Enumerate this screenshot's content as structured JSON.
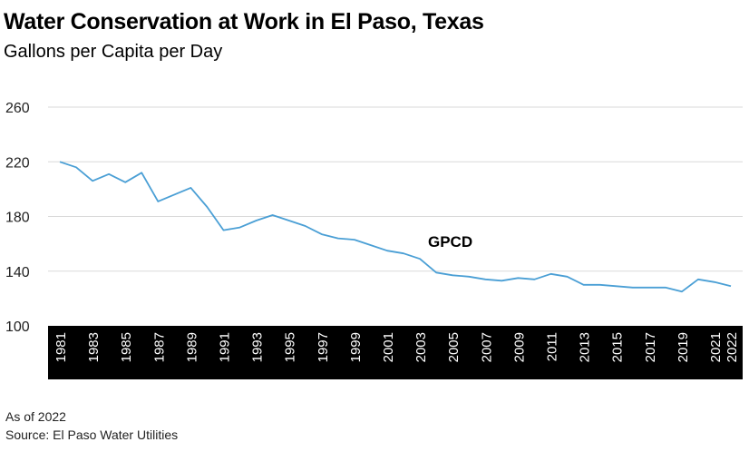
{
  "chart_data": {
    "type": "line",
    "title": "Water Conservation at Work in El Paso, Texas",
    "subtitle": "Gallons per Capita per Day",
    "x": [
      1981,
      1982,
      1983,
      1984,
      1985,
      1986,
      1987,
      1988,
      1989,
      1990,
      1991,
      1992,
      1993,
      1994,
      1995,
      1996,
      1997,
      1998,
      1999,
      2000,
      2001,
      2002,
      2003,
      2004,
      2005,
      2006,
      2007,
      2008,
      2009,
      2010,
      2011,
      2012,
      2013,
      2014,
      2015,
      2016,
      2017,
      2018,
      2019,
      2020,
      2021,
      2022
    ],
    "x_tick_labels": [
      "1981",
      "1983",
      "1985",
      "1987",
      "1989",
      "1991",
      "1993",
      "1995",
      "1997",
      "1999",
      "2001",
      "2003",
      "2005",
      "2007",
      "2009",
      "2011",
      "2013",
      "2015",
      "2017",
      "2019",
      "2021",
      "2022"
    ],
    "series": [
      {
        "name": "GPCD",
        "values": [
          220,
          216,
          206,
          211,
          205,
          212,
          191,
          196,
          201,
          187,
          170,
          172,
          177,
          181,
          177,
          173,
          167,
          164,
          163,
          159,
          155,
          153,
          149,
          139,
          137,
          136,
          134,
          133,
          135,
          134,
          138,
          136,
          130,
          130,
          129,
          128,
          128,
          128,
          125,
          134,
          132,
          129
        ]
      }
    ],
    "ylim": [
      100,
      260
    ],
    "y_ticks": [
      "100",
      "140",
      "180",
      "220",
      "260"
    ],
    "xlabel": "",
    "ylabel": "",
    "grid": true,
    "line_color": "#4a9fd5"
  },
  "footer": {
    "as_of": "As of 2022",
    "source": "Source: El Paso Water Utilities"
  }
}
